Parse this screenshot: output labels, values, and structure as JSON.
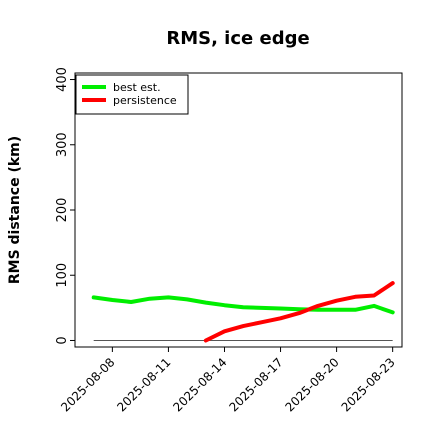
{
  "chart_data": {
    "type": "line",
    "title": "RMS, ice edge",
    "xlabel": "",
    "ylabel": "RMS distance (km)",
    "ylim": [
      -10,
      410
    ],
    "yticks": [
      0,
      100,
      200,
      300,
      400
    ],
    "xlim": [
      "2025-08-06",
      "2025-08-23T12:00"
    ],
    "xticks": [
      "2025-08-08",
      "2025-08-11",
      "2025-08-14",
      "2025-08-17",
      "2025-08-20",
      "2025-08-23"
    ],
    "grid": false,
    "legend": "top-left",
    "zero_line": true,
    "series": [
      {
        "name": "best est.",
        "color": "#00ee00",
        "x": [
          "2025-08-07",
          "2025-08-08",
          "2025-08-09",
          "2025-08-10",
          "2025-08-11",
          "2025-08-12",
          "2025-08-13",
          "2025-08-14",
          "2025-08-15",
          "2025-08-16",
          "2025-08-17",
          "2025-08-18",
          "2025-08-19",
          "2025-08-20",
          "2025-08-21",
          "2025-08-22",
          "2025-08-23"
        ],
        "values": [
          66,
          62,
          59,
          64,
          66,
          63,
          58,
          54,
          51,
          50,
          49,
          48,
          47,
          47,
          47,
          53,
          43
        ]
      },
      {
        "name": "persistence",
        "color": "#ff0000",
        "x": [
          "2025-08-13",
          "2025-08-14",
          "2025-08-15",
          "2025-08-16",
          "2025-08-17",
          "2025-08-18",
          "2025-08-19",
          "2025-08-20",
          "2025-08-21",
          "2025-08-22",
          "2025-08-23"
        ],
        "values": [
          0,
          14,
          22,
          28,
          34,
          42,
          53,
          61,
          67,
          69,
          88
        ]
      }
    ]
  }
}
